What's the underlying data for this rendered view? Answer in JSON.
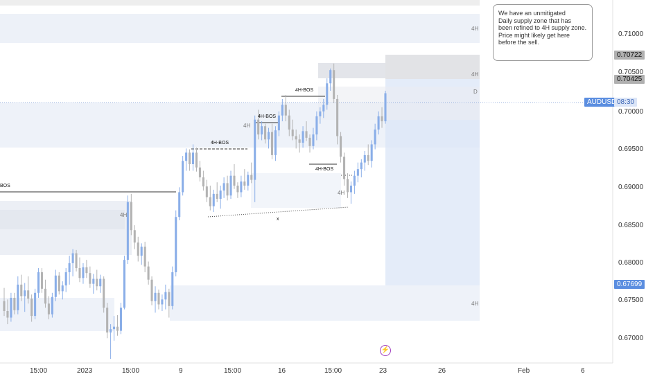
{
  "chart_data": {
    "type": "candlestick",
    "symbol": "AUDUSD",
    "y_axis": {
      "ticks": [
        "0.71000",
        "0.70500",
        "0.70000",
        "0.69500",
        "0.69000",
        "0.68500",
        "0.68000",
        "0.67500",
        "0.67000"
      ],
      "range": [
        0.6685,
        0.7125
      ]
    },
    "x_axis": {
      "ticks": [
        "15:00",
        "2023",
        "15:00",
        "9",
        "15:00",
        "16",
        "15:00",
        "23",
        "26",
        "Feb",
        "6"
      ]
    },
    "price_tags": {
      "upper_zone": "0.70722",
      "lower_zone": "0.70425",
      "current_symbol": "AUDUSD",
      "current_time": "08:30",
      "target": "0.67699"
    },
    "zone_labels": {
      "top": "4H",
      "mid": "4H",
      "daily": "D",
      "bottom": "4H",
      "left_small": "4H",
      "right_small": "4H",
      "mid_small": "4H"
    },
    "annotations": {
      "bos_left": "BOS",
      "bos_1": "4H-BOS",
      "bos_2": "4H-BOS",
      "bos_3": "4H-BOS",
      "bos_4": "4H-BOS",
      "liquidity_x": "x"
    },
    "note": [
      "We have an unmitigated",
      "Daily supply zone that has",
      "been refined to 4H supply zone.",
      "Price might likely get here",
      "before the sell."
    ],
    "event_icon": "lightning-icon",
    "colors": {
      "bull": "#8aaee8",
      "bear": "#b3b3b3",
      "zone": "#e9eef8",
      "short_position": "#dbe5f7",
      "accent": "#5b8ee0"
    },
    "candles": [
      [
        0.676,
        0.6776,
        0.6742,
        0.6748
      ],
      [
        0.6748,
        0.6762,
        0.6732,
        0.674
      ],
      [
        0.674,
        0.677,
        0.6735,
        0.6764
      ],
      [
        0.6764,
        0.677,
        0.6744,
        0.6749
      ],
      [
        0.6749,
        0.679,
        0.6744,
        0.678
      ],
      [
        0.678,
        0.6792,
        0.676,
        0.6766
      ],
      [
        0.6766,
        0.6782,
        0.6747,
        0.6773
      ],
      [
        0.6773,
        0.679,
        0.6757,
        0.6763
      ],
      [
        0.6763,
        0.6768,
        0.6735,
        0.6742
      ],
      [
        0.6742,
        0.6775,
        0.6738,
        0.677
      ],
      [
        0.677,
        0.68,
        0.6764,
        0.6795
      ],
      [
        0.6795,
        0.68,
        0.677,
        0.6775
      ],
      [
        0.6775,
        0.6786,
        0.6752,
        0.6757
      ],
      [
        0.6757,
        0.6766,
        0.6738,
        0.6744
      ],
      [
        0.6744,
        0.677,
        0.674,
        0.6765
      ],
      [
        0.6765,
        0.6798,
        0.676,
        0.6791
      ],
      [
        0.6791,
        0.6795,
        0.6768,
        0.6772
      ],
      [
        0.6772,
        0.6784,
        0.6762,
        0.6779
      ],
      [
        0.6779,
        0.68,
        0.6771,
        0.6795
      ],
      [
        0.6795,
        0.6815,
        0.678,
        0.6806
      ],
      [
        0.6806,
        0.6823,
        0.679,
        0.6818
      ],
      [
        0.6818,
        0.6822,
        0.6796,
        0.68
      ],
      [
        0.68,
        0.6813,
        0.6783,
        0.6788
      ],
      [
        0.6788,
        0.6806,
        0.6781,
        0.6801
      ],
      [
        0.6801,
        0.681,
        0.6788,
        0.6794
      ],
      [
        0.6794,
        0.6802,
        0.6776,
        0.6781
      ],
      [
        0.6781,
        0.6793,
        0.6769,
        0.6787
      ],
      [
        0.6787,
        0.6798,
        0.6773,
        0.6778
      ],
      [
        0.6778,
        0.6792,
        0.677,
        0.6787
      ],
      [
        0.6787,
        0.679,
        0.6746,
        0.6752
      ],
      [
        0.6752,
        0.6758,
        0.6715,
        0.6722
      ],
      [
        0.6722,
        0.6732,
        0.669,
        0.6726
      ],
      [
        0.6726,
        0.6742,
        0.6712,
        0.6729
      ],
      [
        0.6729,
        0.6743,
        0.6718,
        0.6724
      ],
      [
        0.6724,
        0.6758,
        0.672,
        0.6752
      ],
      [
        0.6752,
        0.6815,
        0.675,
        0.681
      ],
      [
        0.681,
        0.6888,
        0.6805,
        0.688
      ],
      [
        0.688,
        0.689,
        0.684,
        0.6846
      ],
      [
        0.6846,
        0.6852,
        0.6823,
        0.6831
      ],
      [
        0.6831,
        0.6838,
        0.6808,
        0.6815
      ],
      [
        0.6815,
        0.683,
        0.6804,
        0.6826
      ],
      [
        0.6826,
        0.6832,
        0.6795,
        0.6802
      ],
      [
        0.6802,
        0.6808,
        0.678,
        0.6786
      ],
      [
        0.6786,
        0.679,
        0.6755,
        0.676
      ],
      [
        0.676,
        0.6778,
        0.6746,
        0.677
      ],
      [
        0.677,
        0.6774,
        0.675,
        0.6756
      ],
      [
        0.6756,
        0.6768,
        0.6748,
        0.6762
      ],
      [
        0.6762,
        0.678,
        0.675,
        0.6771
      ],
      [
        0.6771,
        0.6775,
        0.674,
        0.6754
      ],
      [
        0.6754,
        0.6802,
        0.675,
        0.6795
      ],
      [
        0.6795,
        0.687,
        0.679,
        0.6862
      ],
      [
        0.6862,
        0.6898,
        0.6858,
        0.6892
      ],
      [
        0.6892,
        0.6936,
        0.6888,
        0.693
      ],
      [
        0.693,
        0.6945,
        0.6918,
        0.694
      ],
      [
        0.694,
        0.6944,
        0.6918,
        0.6926
      ],
      [
        0.6926,
        0.695,
        0.6918,
        0.694
      ],
      [
        0.694,
        0.6946,
        0.6917,
        0.6922
      ],
      [
        0.6922,
        0.693,
        0.6905,
        0.691
      ],
      [
        0.691,
        0.6918,
        0.6894,
        0.6899
      ],
      [
        0.6899,
        0.6907,
        0.688,
        0.6886
      ],
      [
        0.6886,
        0.69,
        0.687,
        0.6875
      ],
      [
        0.6875,
        0.6895,
        0.6868,
        0.689
      ],
      [
        0.689,
        0.6904,
        0.688,
        0.6884
      ],
      [
        0.6884,
        0.69,
        0.6872,
        0.6894
      ],
      [
        0.6894,
        0.691,
        0.6885,
        0.6903
      ],
      [
        0.6903,
        0.6912,
        0.6882,
        0.6888
      ],
      [
        0.6888,
        0.6918,
        0.6884,
        0.6912
      ],
      [
        0.6912,
        0.6926,
        0.6896,
        0.69
      ],
      [
        0.69,
        0.6904,
        0.6885,
        0.6892
      ],
      [
        0.6892,
        0.6912,
        0.6886,
        0.6905
      ],
      [
        0.6905,
        0.692,
        0.6895,
        0.69
      ],
      [
        0.69,
        0.6917,
        0.6894,
        0.6913
      ],
      [
        0.6913,
        0.6928,
        0.6903,
        0.6907
      ],
      [
        0.6907,
        0.6985,
        0.688,
        0.698
      ],
      [
        0.698,
        0.6992,
        0.6956,
        0.6962
      ],
      [
        0.6962,
        0.6978,
        0.6955,
        0.6972
      ],
      [
        0.6972,
        0.6975,
        0.6951,
        0.6956
      ],
      [
        0.6956,
        0.697,
        0.6945,
        0.6965
      ],
      [
        0.6965,
        0.6975,
        0.6932,
        0.6937
      ],
      [
        0.6937,
        0.6972,
        0.693,
        0.6967
      ],
      [
        0.6967,
        0.699,
        0.696,
        0.6985
      ],
      [
        0.6985,
        0.7005,
        0.6978,
        0.6998
      ],
      [
        0.6998,
        0.701,
        0.6978,
        0.6985
      ],
      [
        0.6985,
        0.6992,
        0.696,
        0.6968
      ],
      [
        0.6968,
        0.698,
        0.6955,
        0.696
      ],
      [
        0.696,
        0.6968,
        0.6945,
        0.6956
      ],
      [
        0.6956,
        0.6962,
        0.694,
        0.6952
      ],
      [
        0.6952,
        0.6972,
        0.6946,
        0.6966
      ],
      [
        0.6966,
        0.6978,
        0.6954,
        0.6958
      ],
      [
        0.6958,
        0.6962,
        0.694,
        0.6948
      ],
      [
        0.6948,
        0.697,
        0.6944,
        0.6962
      ],
      [
        0.6962,
        0.699,
        0.6955,
        0.6984
      ],
      [
        0.6984,
        0.6995,
        0.6975,
        0.699
      ],
      [
        0.699,
        0.7005,
        0.6982,
        0.6998
      ],
      [
        0.6998,
        0.703,
        0.6992,
        0.7024
      ],
      [
        0.7024,
        0.7042,
        0.7015,
        0.704
      ],
      [
        0.704,
        0.7048,
        0.7,
        0.7005
      ],
      [
        0.7005,
        0.701,
        0.695,
        0.696
      ],
      [
        0.696,
        0.6965,
        0.6928,
        0.6935
      ],
      [
        0.6935,
        0.694,
        0.69,
        0.6908
      ],
      [
        0.6908,
        0.6915,
        0.6885,
        0.6892
      ],
      [
        0.6892,
        0.6905,
        0.6878,
        0.69
      ],
      [
        0.69,
        0.6918,
        0.689,
        0.6912
      ],
      [
        0.6912,
        0.6928,
        0.6904,
        0.692
      ],
      [
        0.692,
        0.6932,
        0.691,
        0.6928
      ],
      [
        0.6928,
        0.6942,
        0.6918,
        0.6937
      ],
      [
        0.6937,
        0.695,
        0.6925,
        0.693
      ],
      [
        0.693,
        0.6955,
        0.6922,
        0.695
      ],
      [
        0.695,
        0.6975,
        0.6944,
        0.6968
      ],
      [
        0.6968,
        0.699,
        0.6962,
        0.6984
      ],
      [
        0.6984,
        0.6995,
        0.697,
        0.6978
      ],
      [
        0.6978,
        0.7015,
        0.6975,
        0.7012
      ]
    ]
  }
}
